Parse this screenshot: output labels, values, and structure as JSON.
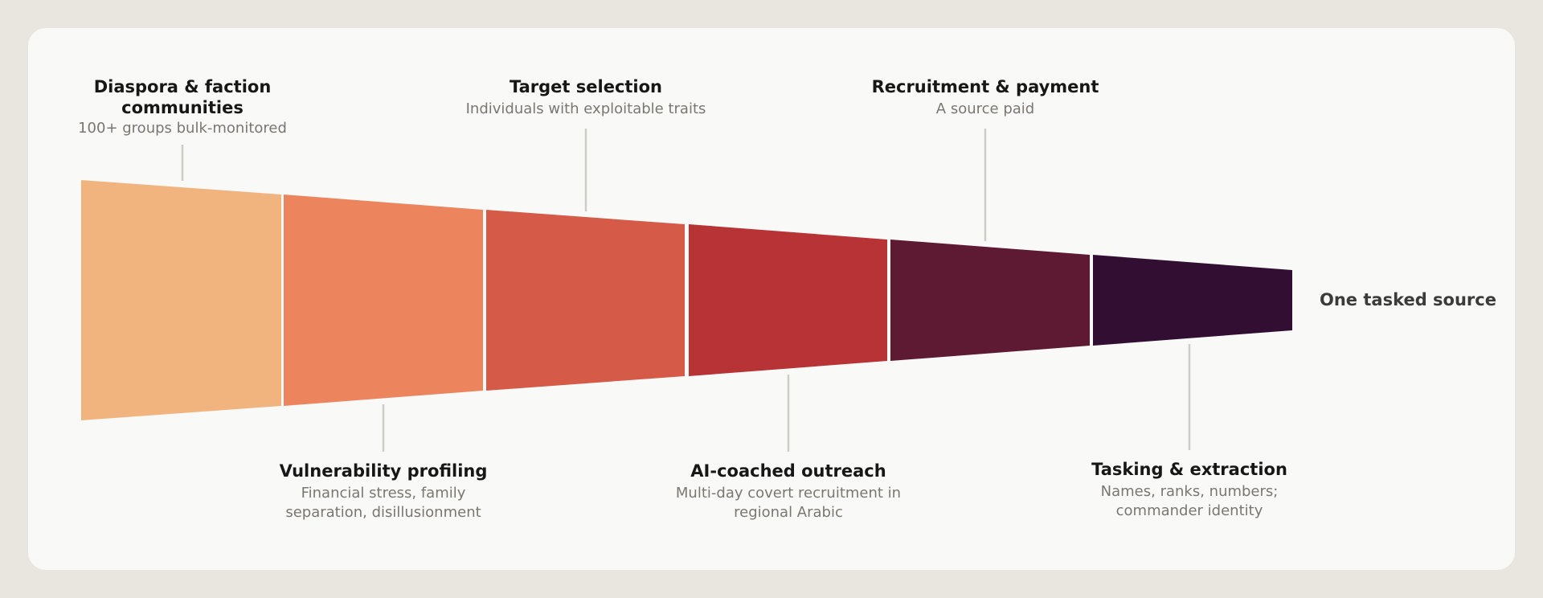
{
  "colors": {
    "background": "#e9e6df",
    "card": "#f9f9f7",
    "connector": "#cfccc6",
    "segment_1": "#f1b47e",
    "segment_2": "#ec845d",
    "segment_3": "#d65a48",
    "segment_4": "#b83336",
    "segment_5": "#5e1a33",
    "segment_6": "#320f32"
  },
  "stages": [
    {
      "title": "Diaspora & faction communities",
      "title_line1": "Diaspora & faction",
      "title_line2": "communities",
      "subtitle_line1": "100+ groups bulk-monitored",
      "subtitle_line2": ""
    },
    {
      "title": "Vulnerability profiling",
      "title_line1": "Vulnerability profiling",
      "title_line2": "",
      "subtitle_line1": "Financial stress, family",
      "subtitle_line2": "separation, disillusionment"
    },
    {
      "title": "Target selection",
      "title_line1": "Target selection",
      "title_line2": "",
      "subtitle_line1": "Individuals with exploitable traits",
      "subtitle_line2": ""
    },
    {
      "title": "AI-coached outreach",
      "title_line1": "AI-coached outreach",
      "title_line2": "",
      "subtitle_line1": "Multi-day covert recruitment in",
      "subtitle_line2": "regional Arabic"
    },
    {
      "title": "Recruitment & payment",
      "title_line1": "Recruitment & payment",
      "title_line2": "",
      "subtitle_line1": "A source paid",
      "subtitle_line2": ""
    },
    {
      "title": "Tasking & extraction",
      "title_line1": "Tasking & extraction",
      "title_line2": "",
      "subtitle_line1": "Names, ranks, numbers;",
      "subtitle_line2": "commander identity"
    }
  ],
  "end_label": "One tasked source"
}
